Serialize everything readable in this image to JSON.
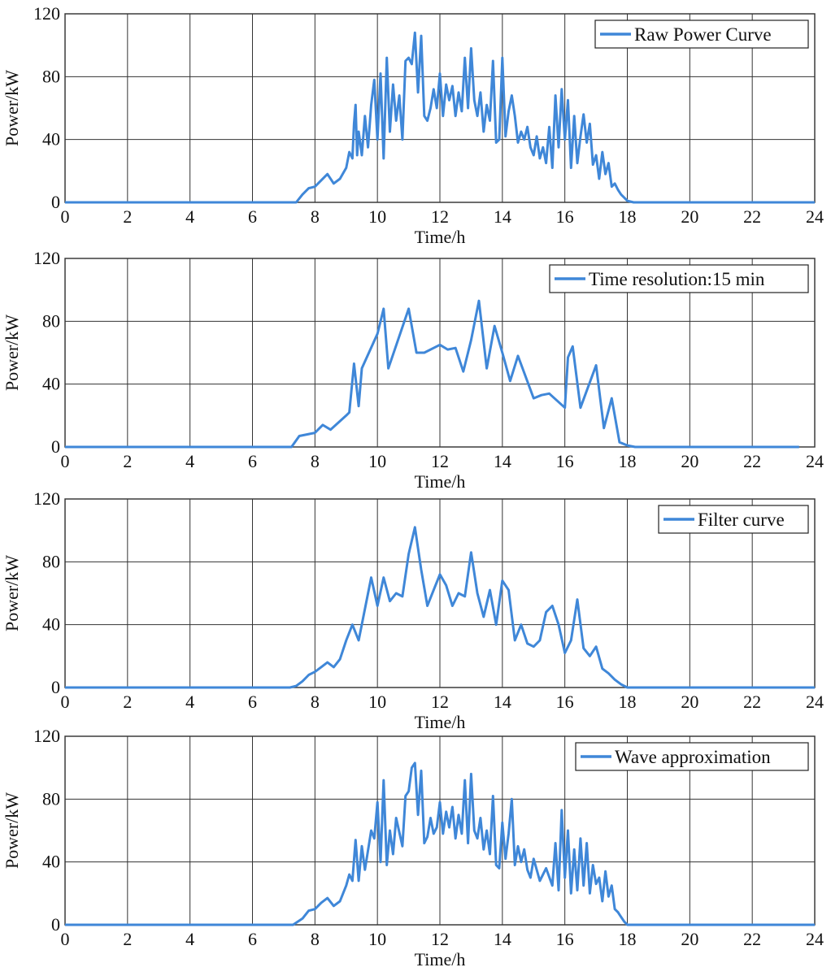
{
  "line_color": "#3f87d8",
  "chart_data": [
    {
      "type": "line",
      "legend": "Raw Power Curve",
      "xlabel": "Time/h",
      "ylabel": "Power/kW",
      "xlim": [
        0,
        24
      ],
      "ylim": [
        0,
        120
      ],
      "xticks": [
        "0",
        "2",
        "4",
        "6",
        "8",
        "10",
        "12",
        "14",
        "16",
        "18",
        "20",
        "22",
        "24"
      ],
      "yticks": [
        "0",
        "40",
        "80",
        "120"
      ],
      "grid": true,
      "legend_position": "top-right",
      "x": [
        0,
        7.4,
        7.6,
        7.8,
        8.0,
        8.2,
        8.4,
        8.6,
        8.8,
        9.0,
        9.1,
        9.2,
        9.25,
        9.3,
        9.35,
        9.4,
        9.5,
        9.6,
        9.7,
        9.8,
        9.9,
        10.0,
        10.1,
        10.2,
        10.3,
        10.4,
        10.5,
        10.6,
        10.7,
        10.8,
        10.9,
        11.0,
        11.1,
        11.2,
        11.3,
        11.4,
        11.5,
        11.6,
        11.7,
        11.8,
        11.9,
        12.0,
        12.1,
        12.2,
        12.3,
        12.4,
        12.5,
        12.6,
        12.7,
        12.8,
        12.9,
        13.0,
        13.1,
        13.2,
        13.3,
        13.4,
        13.5,
        13.6,
        13.7,
        13.8,
        13.9,
        14.0,
        14.1,
        14.2,
        14.3,
        14.4,
        14.5,
        14.6,
        14.7,
        14.8,
        14.9,
        15.0,
        15.1,
        15.2,
        15.3,
        15.4,
        15.5,
        15.6,
        15.7,
        15.8,
        15.9,
        16.0,
        16.1,
        16.2,
        16.3,
        16.4,
        16.5,
        16.6,
        16.7,
        16.8,
        16.9,
        17.0,
        17.1,
        17.2,
        17.3,
        17.4,
        17.5,
        17.6,
        17.7,
        17.8,
        17.9,
        18.0,
        18.2,
        24
      ],
      "y": [
        0,
        0,
        5,
        9,
        10,
        14,
        18,
        12,
        15,
        22,
        32,
        28,
        50,
        62,
        30,
        45,
        30,
        55,
        35,
        62,
        78,
        40,
        82,
        28,
        92,
        45,
        75,
        52,
        68,
        40,
        90,
        92,
        88,
        108,
        70,
        106,
        55,
        52,
        60,
        72,
        60,
        82,
        55,
        75,
        65,
        74,
        55,
        70,
        58,
        92,
        60,
        98,
        65,
        55,
        70,
        45,
        62,
        52,
        90,
        38,
        40,
        92,
        42,
        58,
        68,
        55,
        38,
        45,
        40,
        48,
        35,
        30,
        42,
        28,
        35,
        25,
        48,
        22,
        68,
        35,
        72,
        40,
        65,
        22,
        55,
        25,
        42,
        56,
        38,
        50,
        24,
        30,
        15,
        32,
        18,
        25,
        10,
        12,
        8,
        5,
        3,
        1,
        0,
        0
      ]
    },
    {
      "type": "line",
      "legend": "Time resolution:15 min",
      "xlabel": "Time/h",
      "ylabel": "Power/kW",
      "xlim": [
        0,
        24
      ],
      "ylim": [
        0,
        120
      ],
      "xticks": [
        "0",
        "2",
        "4",
        "6",
        "8",
        "10",
        "12",
        "14",
        "16",
        "18",
        "20",
        "22",
        "24"
      ],
      "yticks": [
        "0",
        "40",
        "80",
        "120"
      ],
      "grid": true,
      "legend_position": "top-right",
      "x": [
        0,
        7.25,
        7.5,
        8.0,
        8.25,
        8.5,
        9.0,
        9.1,
        9.25,
        9.4,
        9.5,
        10.0,
        10.2,
        10.35,
        11.0,
        11.25,
        11.5,
        12.0,
        12.25,
        12.5,
        12.75,
        13.0,
        13.25,
        13.5,
        13.75,
        14.0,
        14.25,
        14.5,
        15.0,
        15.25,
        15.5,
        16.0,
        16.1,
        16.25,
        16.5,
        17.0,
        17.25,
        17.5,
        17.75,
        18.0,
        18.25,
        23.5
      ],
      "y": [
        0,
        0,
        7,
        9,
        14,
        11,
        20,
        22,
        53,
        26,
        50,
        72,
        88,
        50,
        88,
        60,
        60,
        65,
        62,
        63,
        48,
        68,
        93,
        50,
        77,
        60,
        42,
        58,
        31,
        33,
        34,
        25,
        57,
        64,
        25,
        52,
        12,
        31,
        3,
        1,
        0,
        0
      ]
    },
    {
      "type": "line",
      "legend": "Filter curve",
      "xlabel": "Time/h",
      "ylabel": "Power/kW",
      "xlim": [
        0,
        24
      ],
      "ylim": [
        0,
        120
      ],
      "xticks": [
        "0",
        "2",
        "4",
        "6",
        "8",
        "10",
        "12",
        "14",
        "16",
        "18",
        "20",
        "22",
        "24"
      ],
      "yticks": [
        "0",
        "40",
        "80",
        "120"
      ],
      "grid": true,
      "legend_position": "top-right",
      "x": [
        0,
        7.2,
        7.4,
        7.6,
        7.8,
        8.0,
        8.2,
        8.4,
        8.6,
        8.8,
        9.0,
        9.2,
        9.4,
        9.6,
        9.8,
        10.0,
        10.2,
        10.4,
        10.6,
        10.8,
        11.0,
        11.2,
        11.4,
        11.6,
        11.8,
        12.0,
        12.2,
        12.4,
        12.6,
        12.8,
        13.0,
        13.2,
        13.4,
        13.6,
        13.8,
        14.0,
        14.2,
        14.4,
        14.6,
        14.8,
        15.0,
        15.2,
        15.4,
        15.6,
        15.8,
        16.0,
        16.2,
        16.4,
        16.6,
        16.8,
        17.0,
        17.2,
        17.4,
        17.6,
        17.8,
        18.0,
        18.2,
        24
      ],
      "y": [
        0,
        0,
        1,
        4,
        8,
        10,
        13,
        16,
        13,
        18,
        30,
        40,
        30,
        50,
        70,
        52,
        70,
        55,
        60,
        58,
        85,
        102,
        75,
        52,
        62,
        72,
        65,
        52,
        60,
        58,
        86,
        60,
        45,
        62,
        40,
        68,
        62,
        30,
        40,
        28,
        26,
        30,
        48,
        52,
        40,
        22,
        30,
        56,
        25,
        20,
        26,
        12,
        9,
        5,
        2,
        0,
        0,
        0
      ]
    },
    {
      "type": "line",
      "legend": "Wave approximation",
      "xlabel": "Time/h",
      "ylabel": "Power/kW",
      "xlim": [
        0,
        24
      ],
      "ylim": [
        0,
        120
      ],
      "xticks": [
        "0",
        "2",
        "4",
        "6",
        "8",
        "10",
        "12",
        "14",
        "16",
        "18",
        "20",
        "22",
        "24"
      ],
      "yticks": [
        "0",
        "40",
        "80",
        "120"
      ],
      "grid": true,
      "legend_position": "top-right",
      "x": [
        0,
        7.3,
        7.6,
        7.8,
        8.0,
        8.2,
        8.4,
        8.6,
        8.8,
        9.0,
        9.1,
        9.2,
        9.3,
        9.4,
        9.5,
        9.6,
        9.8,
        9.9,
        10.0,
        10.1,
        10.2,
        10.3,
        10.4,
        10.5,
        10.6,
        10.8,
        10.9,
        11.0,
        11.1,
        11.2,
        11.3,
        11.4,
        11.5,
        11.6,
        11.7,
        11.8,
        11.9,
        12.0,
        12.1,
        12.2,
        12.3,
        12.4,
        12.5,
        12.6,
        12.7,
        12.8,
        12.9,
        13.0,
        13.1,
        13.2,
        13.3,
        13.4,
        13.5,
        13.6,
        13.7,
        13.8,
        13.9,
        14.0,
        14.1,
        14.2,
        14.3,
        14.4,
        14.5,
        14.6,
        14.7,
        14.8,
        14.9,
        15.0,
        15.2,
        15.4,
        15.6,
        15.7,
        15.8,
        15.9,
        16.0,
        16.1,
        16.2,
        16.3,
        16.4,
        16.5,
        16.6,
        16.7,
        16.8,
        16.9,
        17.0,
        17.1,
        17.2,
        17.3,
        17.4,
        17.5,
        17.6,
        17.7,
        17.8,
        17.9,
        18.0,
        18.2,
        24
      ],
      "y": [
        0,
        0,
        4,
        9,
        10,
        14,
        17,
        12,
        15,
        25,
        32,
        28,
        54,
        28,
        50,
        35,
        60,
        55,
        78,
        40,
        92,
        38,
        60,
        45,
        68,
        50,
        82,
        85,
        100,
        103,
        70,
        98,
        52,
        56,
        68,
        58,
        62,
        78,
        58,
        72,
        62,
        75,
        55,
        70,
        58,
        92,
        52,
        96,
        60,
        55,
        68,
        48,
        60,
        45,
        82,
        38,
        36,
        65,
        42,
        58,
        80,
        38,
        50,
        40,
        48,
        35,
        30,
        42,
        28,
        36,
        25,
        52,
        22,
        73,
        30,
        60,
        20,
        48,
        22,
        55,
        25,
        52,
        20,
        38,
        26,
        30,
        15,
        34,
        18,
        25,
        10,
        8,
        5,
        2,
        0,
        0,
        0
      ]
    }
  ]
}
